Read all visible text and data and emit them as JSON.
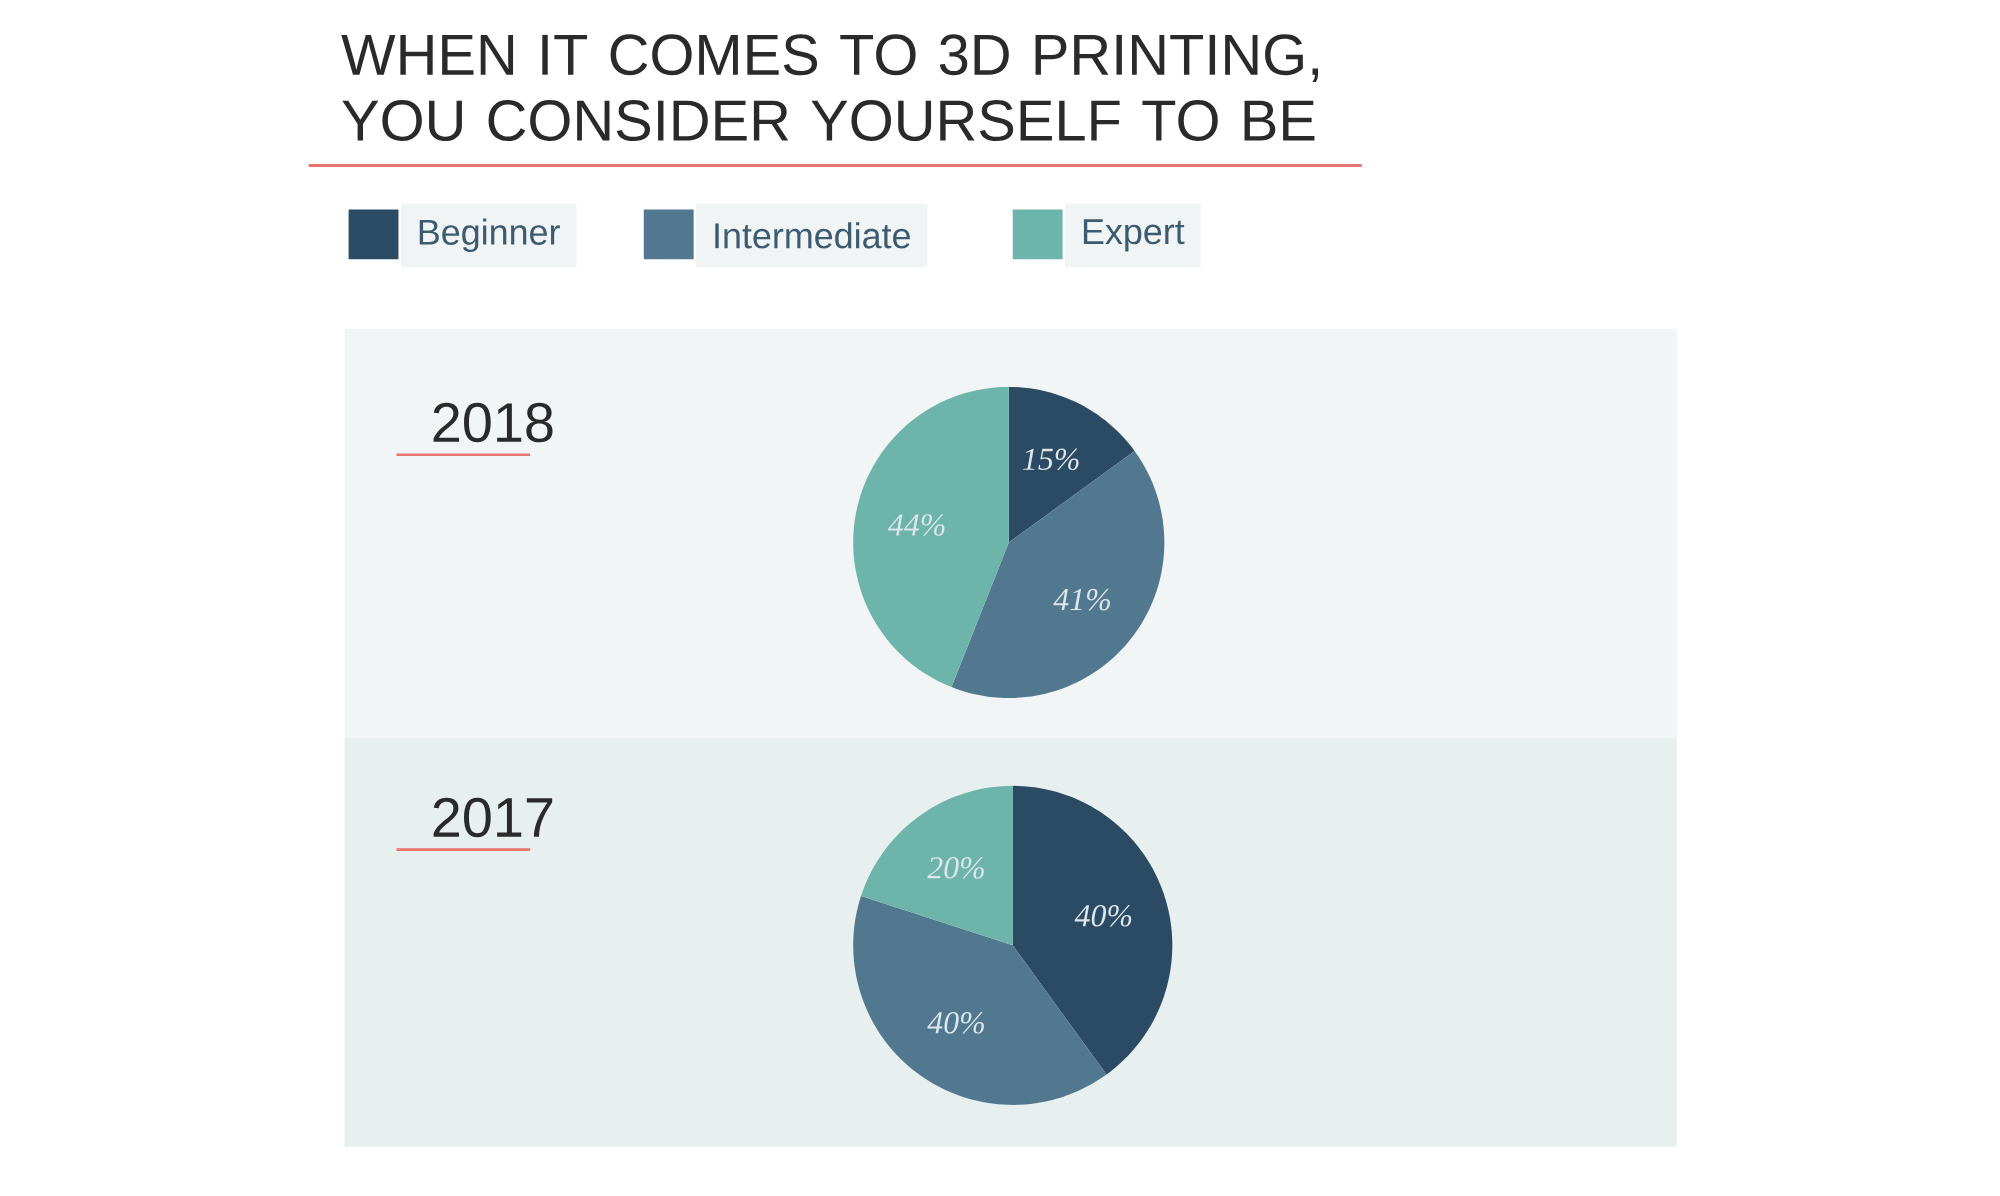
{
  "chart_data": [
    {
      "type": "pie",
      "title": "WHEN IT COMES TO 3D PRINTING, YOU CONSIDER YOURSELF TO BE",
      "subtitle": "2018",
      "legend": "top",
      "categories": [
        "Beginner",
        "Intermediate",
        "Expert"
      ],
      "values": [
        15,
        41,
        44
      ],
      "colors": [
        "#2b4a63",
        "#527890",
        "#6db5aa"
      ],
      "value_labels": [
        "15%",
        "41%",
        "44%"
      ]
    },
    {
      "type": "pie",
      "title": "2017",
      "categories": [
        null,
        null,
        null
      ],
      "values": [
        40,
        40,
        20
      ],
      "colors": [
        "#2b4a63",
        "#527890",
        "#6db5aa"
      ],
      "value_labels": [
        "40%",
        "40%",
        "20%"
      ]
    }
  ]
}
